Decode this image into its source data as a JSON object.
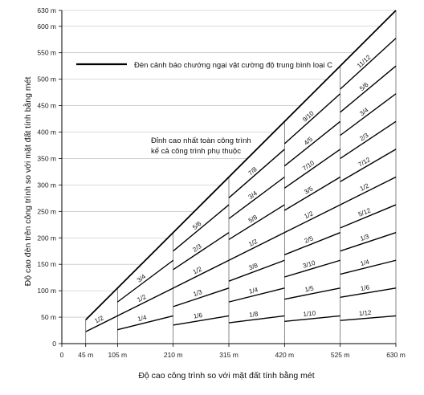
{
  "chart_data": {
    "type": "line",
    "title": "",
    "xlabel": "Độ cao công trình so với mặt đất tính bằng mét",
    "ylabel": "Độ cao đèn trên công trình so với mặt đất tính bằng mét",
    "xlim": [
      0,
      630
    ],
    "ylim": [
      0,
      630
    ],
    "x_ticks": [
      0,
      45,
      105,
      210,
      315,
      420,
      525,
      630
    ],
    "x_tick_labels": [
      "0",
      "45 m",
      "105 m",
      "210 m",
      "315 m",
      "420 m",
      "525 m",
      "630 m"
    ],
    "y_ticks": [
      0,
      50,
      100,
      150,
      200,
      250,
      300,
      350,
      400,
      450,
      500,
      550,
      600,
      630
    ],
    "y_tick_labels": [
      "0",
      "50 m",
      "100 m",
      "150 m",
      "200 m",
      "250 m",
      "300 m",
      "350 m",
      "400 m",
      "450 m",
      "500 m",
      "550 m",
      "600 m",
      "630 m"
    ],
    "grid": true,
    "legend": "Đèn cảnh báo chướng ngại vật cường độ trung bình loại C",
    "annotation_lines": [
      "Đỉnh cao nhất toàn công trình",
      "kể cả công trình phụ thuộc"
    ],
    "zones": [
      {
        "x_range": [
          45,
          105
        ],
        "fractions": [
          "1/2"
        ]
      },
      {
        "x_range": [
          105,
          210
        ],
        "fractions": [
          "1/4",
          "1/2",
          "3/4"
        ]
      },
      {
        "x_range": [
          210,
          315
        ],
        "fractions": [
          "1/6",
          "1/3",
          "1/2",
          "2/3",
          "5/6"
        ]
      },
      {
        "x_range": [
          315,
          420
        ],
        "fractions": [
          "1/8",
          "1/4",
          "3/8",
          "1/2",
          "5/8",
          "3/4",
          "7/8"
        ]
      },
      {
        "x_range": [
          420,
          525
        ],
        "fractions": [
          "1/10",
          "1/5",
          "3/10",
          "2/5",
          "1/2",
          "3/5",
          "7/10",
          "4/5",
          "9/10"
        ]
      },
      {
        "x_range": [
          525,
          630
        ],
        "fractions": [
          "1/12",
          "1/6",
          "1/4",
          "1/3",
          "5/12",
          "1/2",
          "7/12",
          "2/3",
          "3/4",
          "5/6",
          "11/12"
        ]
      }
    ]
  }
}
